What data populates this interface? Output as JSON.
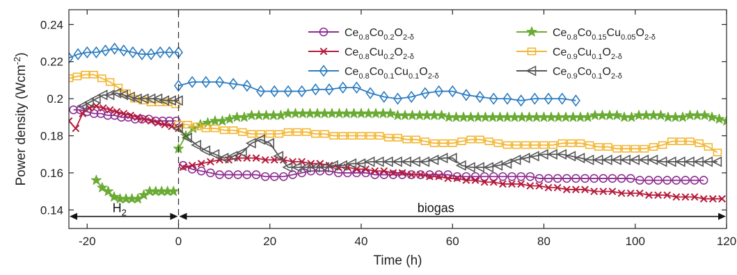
{
  "chart_data": {
    "type": "line",
    "title": "",
    "xlabel": "Time (h)",
    "ylabel": {
      "main": "Power density (Wcm",
      "sup": "-2",
      "end": ")"
    },
    "xlim": [
      -24,
      120
    ],
    "ylim": [
      0.13,
      0.248
    ],
    "xticks": [
      -20,
      0,
      20,
      40,
      60,
      80,
      100,
      120
    ],
    "xtick_labels": [
      "-20",
      "0",
      "20",
      "40",
      "60",
      "80",
      "100",
      "120"
    ],
    "yticks": [
      0.14,
      0.16,
      0.18,
      0.2,
      0.22,
      0.24
    ],
    "ytick_labels": [
      "0.14",
      "0.16",
      "0.18",
      "0.2",
      "0.22",
      "0.24"
    ],
    "grid": false,
    "legend_placement": "top-right",
    "annotations": {
      "h2": {
        "base": "H",
        "sub": "2"
      },
      "biogas": "biogas",
      "switch_x": 0,
      "arrow_y": 0.1365
    },
    "series": [
      {
        "key": "ce08co02",
        "legend": [
          [
            "Ce",
            ""
          ],
          [
            "0.8",
            "sub"
          ],
          [
            "Co",
            ""
          ],
          [
            "0.2",
            "sub"
          ],
          [
            "O",
            ""
          ],
          [
            "2-δ",
            "sub"
          ]
        ],
        "color": "#8b2d8f",
        "marker": "circle",
        "segments": [
          {
            "x_start": -23,
            "x_step": 1.5,
            "y": [
              0.194,
              0.194,
              0.193,
              0.192,
              0.192,
              0.191,
              0.191,
              0.19,
              0.19,
              0.189,
              0.189,
              0.189,
              0.188,
              0.188,
              0.188,
              0.188
            ]
          },
          {
            "x_start": 1,
            "x_step": 2,
            "y": [
              0.164,
              0.162,
              0.161,
              0.16,
              0.159,
              0.159,
              0.159,
              0.159,
              0.159,
              0.158,
              0.158,
              0.158,
              0.159,
              0.16,
              0.161,
              0.161,
              0.161,
              0.16,
              0.16,
              0.16,
              0.16,
              0.159,
              0.159,
              0.159,
              0.159,
              0.159,
              0.159,
              0.159,
              0.159,
              0.159,
              0.158,
              0.158,
              0.158,
              0.158,
              0.158,
              0.158,
              0.158,
              0.158,
              0.158,
              0.157,
              0.157,
              0.157,
              0.157,
              0.157,
              0.157,
              0.157,
              0.157,
              0.157,
              0.157,
              0.157,
              0.156,
              0.156,
              0.156,
              0.156,
              0.156,
              0.156,
              0.156,
              0.156
            ]
          }
        ]
      },
      {
        "key": "ce08cu02",
        "legend": [
          [
            "Ce",
            ""
          ],
          [
            "0.8",
            "sub"
          ],
          [
            "Cu",
            ""
          ],
          [
            "0.2",
            "sub"
          ],
          [
            "O",
            ""
          ],
          [
            "2-δ",
            "sub"
          ]
        ],
        "color": "#b5193a",
        "marker": "x",
        "segments": [
          {
            "x_start": -24,
            "x_step": 1.5,
            "y": [
              0.188,
              0.184,
              0.192,
              0.195,
              0.196,
              0.195,
              0.194,
              0.193,
              0.192,
              0.191,
              0.19,
              0.189,
              0.188,
              0.187,
              0.186,
              0.185,
              0.184
            ]
          },
          {
            "x_start": 1,
            "x_step": 2,
            "y": [
              0.163,
              0.164,
              0.165,
              0.166,
              0.167,
              0.167,
              0.168,
              0.168,
              0.168,
              0.167,
              0.167,
              0.167,
              0.166,
              0.166,
              0.165,
              0.165,
              0.164,
              0.163,
              0.163,
              0.162,
              0.162,
              0.161,
              0.161,
              0.16,
              0.16,
              0.159,
              0.159,
              0.158,
              0.158,
              0.157,
              0.157,
              0.156,
              0.156,
              0.155,
              0.155,
              0.154,
              0.154,
              0.154,
              0.153,
              0.153,
              0.152,
              0.152,
              0.151,
              0.151,
              0.151,
              0.15,
              0.15,
              0.15,
              0.149,
              0.149,
              0.149,
              0.148,
              0.148,
              0.148,
              0.147,
              0.147,
              0.147,
              0.146,
              0.146,
              0.146
            ]
          }
        ]
      },
      {
        "key": "ce08co01cu01",
        "legend": [
          [
            "Ce",
            ""
          ],
          [
            "0.8",
            "sub"
          ],
          [
            "Co",
            ""
          ],
          [
            "0.1",
            "sub"
          ],
          [
            "Cu",
            ""
          ],
          [
            "0.1",
            "sub"
          ],
          [
            "O",
            ""
          ],
          [
            "2-δ",
            "sub"
          ]
        ],
        "color": "#2b7bbf",
        "marker": "diamond",
        "segments": [
          {
            "x_start": -24,
            "x_step": 2,
            "y": [
              0.222,
              0.224,
              0.225,
              0.225,
              0.226,
              0.227,
              0.226,
              0.225,
              0.224,
              0.224,
              0.225,
              0.225,
              0.225
            ]
          },
          {
            "x_start": 0,
            "x_step": 3,
            "y": [
              0.207,
              0.209,
              0.209,
              0.209,
              0.208,
              0.207,
              0.204,
              0.204,
              0.204,
              0.204,
              0.205,
              0.205,
              0.206,
              0.206,
              0.203,
              0.201,
              0.2,
              0.201,
              0.203,
              0.204,
              0.204,
              0.202,
              0.201,
              0.2,
              0.2,
              0.199,
              0.2,
              0.2,
              0.2,
              0.199
            ]
          }
        ]
      },
      {
        "key": "ce08co015cu005",
        "legend": [
          [
            "Ce",
            ""
          ],
          [
            "0.8",
            "sub"
          ],
          [
            "Co",
            ""
          ],
          [
            "0.15",
            "sub"
          ],
          [
            "Cu",
            ""
          ],
          [
            "0.05",
            "sub"
          ],
          [
            "O",
            ""
          ],
          [
            "2-δ",
            "sub"
          ]
        ],
        "color": "#6aab34",
        "marker": "star",
        "segments": [
          {
            "x_start": -18,
            "x_step": 1.3,
            "y": [
              0.156,
              0.152,
              0.15,
              0.147,
              0.146,
              0.146,
              0.146,
              0.146,
              0.148,
              0.15,
              0.15,
              0.15,
              0.15,
              0.15
            ]
          },
          {
            "x_start": 0,
            "x_step": 1.6,
            "y": [
              0.173,
              0.18,
              0.184,
              0.186,
              0.187,
              0.188,
              0.188,
              0.189,
              0.19,
              0.19,
              0.191,
              0.191,
              0.191,
              0.191,
              0.191,
              0.192,
              0.192,
              0.192,
              0.192,
              0.192,
              0.192,
              0.192,
              0.192,
              0.192,
              0.192,
              0.192,
              0.192,
              0.192,
              0.192,
              0.192,
              0.191,
              0.191,
              0.191,
              0.191,
              0.191,
              0.191,
              0.191,
              0.19,
              0.19,
              0.19,
              0.19,
              0.19,
              0.19,
              0.19,
              0.19,
              0.19,
              0.19,
              0.19,
              0.19,
              0.19,
              0.19,
              0.19,
              0.19,
              0.19,
              0.19,
              0.19,
              0.19,
              0.191,
              0.191,
              0.191,
              0.191,
              0.19,
              0.19,
              0.191,
              0.191,
              0.191,
              0.191,
              0.19,
              0.19,
              0.19,
              0.191,
              0.191,
              0.191,
              0.19,
              0.189,
              0.188,
              0.188,
              0.189,
              0.19,
              0.19,
              0.191,
              0.191,
              0.191,
              0.191,
              0.191,
              0.191,
              0.191,
              0.191,
              0.191,
              0.191,
              0.191,
              0.191,
              0.191,
              0.191,
              0.191
            ]
          }
        ]
      },
      {
        "key": "ce09cu01",
        "legend": [
          [
            "Ce",
            ""
          ],
          [
            "0.9",
            "sub"
          ],
          [
            "Cu",
            ""
          ],
          [
            "0.1",
            "sub"
          ],
          [
            "O",
            ""
          ],
          [
            "2-δ",
            "sub"
          ]
        ],
        "color": "#f2b530",
        "marker": "square",
        "segments": [
          {
            "x_start": -24,
            "x_step": 1.8,
            "y": [
              0.211,
              0.212,
              0.213,
              0.213,
              0.211,
              0.209,
              0.206,
              0.203,
              0.2,
              0.199,
              0.198,
              0.198,
              0.198,
              0.197
            ]
          },
          {
            "x_start": 0,
            "x_step": 2,
            "y": [
              0.186,
              0.186,
              0.185,
              0.184,
              0.184,
              0.183,
              0.183,
              0.182,
              0.181,
              0.181,
              0.181,
              0.181,
              0.182,
              0.182,
              0.182,
              0.181,
              0.181,
              0.18,
              0.18,
              0.18,
              0.18,
              0.18,
              0.18,
              0.179,
              0.179,
              0.178,
              0.178,
              0.177,
              0.176,
              0.176,
              0.176,
              0.177,
              0.178,
              0.178,
              0.177,
              0.176,
              0.175,
              0.175,
              0.175,
              0.175,
              0.175,
              0.175,
              0.176,
              0.176,
              0.176,
              0.175,
              0.174,
              0.174,
              0.173,
              0.173,
              0.173,
              0.173,
              0.174,
              0.175,
              0.177,
              0.177,
              0.177,
              0.176,
              0.174,
              0.171
            ]
          }
        ]
      },
      {
        "key": "ce09co01",
        "legend": [
          [
            "Ce",
            ""
          ],
          [
            "0.9",
            "sub"
          ],
          [
            "Co",
            ""
          ],
          [
            "0.1",
            "sub"
          ],
          [
            "O",
            ""
          ],
          [
            "2-δ",
            "sub"
          ]
        ],
        "color": "#555555",
        "marker": "triangle-left",
        "segments": [
          {
            "x_start": -21,
            "x_step": 1.5,
            "y": [
              0.196,
              0.198,
              0.2,
              0.202,
              0.202,
              0.203,
              0.202,
              0.201,
              0.2,
              0.2,
              0.2,
              0.2,
              0.199,
              0.199,
              0.199
            ]
          },
          {
            "x_start": 0,
            "x_step": 2,
            "y": [
              0.184,
              0.179,
              0.175,
              0.172,
              0.17,
              0.168,
              0.169,
              0.171,
              0.176,
              0.178,
              0.176,
              0.169,
              0.163,
              0.163,
              0.163,
              0.163,
              0.163,
              0.164,
              0.164,
              0.165,
              0.165,
              0.166,
              0.166,
              0.166,
              0.166,
              0.166,
              0.166,
              0.166,
              0.167,
              0.168,
              0.168,
              0.164,
              0.163,
              0.163,
              0.163,
              0.164,
              0.165,
              0.167,
              0.168,
              0.169,
              0.17,
              0.17,
              0.17,
              0.169,
              0.168,
              0.167,
              0.167,
              0.167,
              0.167,
              0.167,
              0.167,
              0.167,
              0.167,
              0.166,
              0.166,
              0.166,
              0.166,
              0.166,
              0.166,
              0.166
            ]
          }
        ]
      }
    ]
  }
}
